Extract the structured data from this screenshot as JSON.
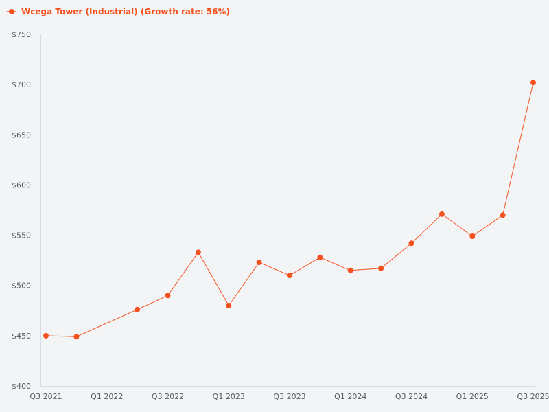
{
  "chart_data": {
    "type": "line",
    "series": [
      {
        "name": "Wcega Tower (Industrial) (Growth rate: 56%)",
        "color": "#f4511e",
        "x": [
          "Q3 2021",
          "Q4 2021",
          "Q2 2022",
          "Q3 2022",
          "Q4 2022",
          "Q1 2023",
          "Q2 2023",
          "Q3 2023",
          "Q4 2023",
          "Q1 2024",
          "Q2 2024",
          "Q3 2024",
          "Q4 2024",
          "Q1 2025",
          "Q2 2025",
          "Q3 2025"
        ],
        "values": [
          450,
          449,
          476,
          490,
          533,
          480,
          523,
          510,
          528,
          515,
          517,
          542,
          571,
          549,
          570,
          702
        ]
      }
    ],
    "x_ticks": [
      "Q3 2021",
      "Q1 2022",
      "Q3 2022",
      "Q1 2023",
      "Q3 2023",
      "Q1 2024",
      "Q3 2024",
      "Q1 2025",
      "Q3 2025"
    ],
    "y_ticks": [
      "$400",
      "$450",
      "$500",
      "$550",
      "$600",
      "$650",
      "$700",
      "$750"
    ],
    "ylim": [
      400,
      750
    ],
    "legend_position": "top-left",
    "grid": false,
    "xlabel": "",
    "ylabel": ""
  }
}
